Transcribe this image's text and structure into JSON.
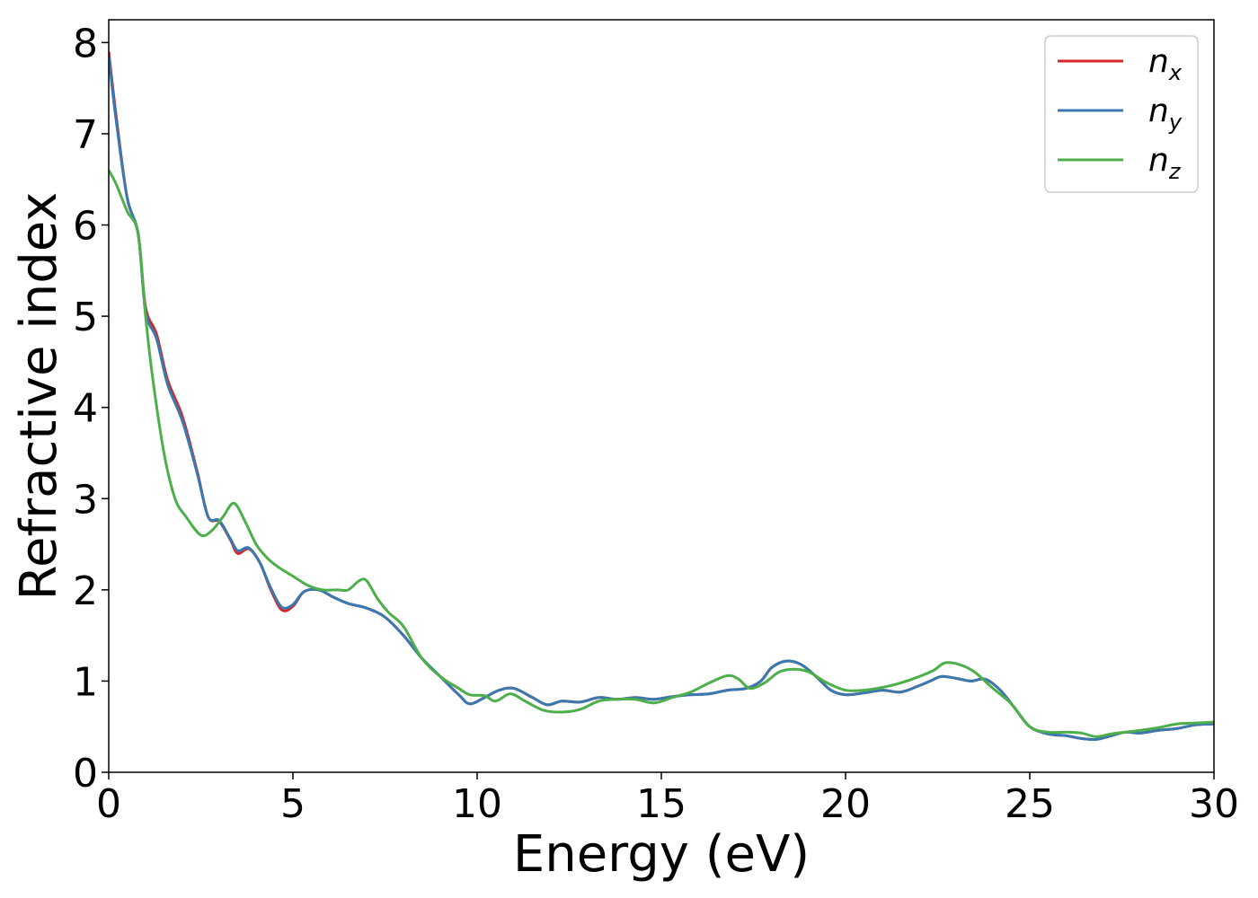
{
  "chart_data": {
    "type": "line",
    "title": "",
    "xlabel": "Energy (eV)",
    "ylabel": "Refractive index",
    "xlim": [
      0,
      30
    ],
    "ylim": [
      0,
      8.25
    ],
    "xticks": [
      0,
      5,
      10,
      15,
      20,
      25,
      30
    ],
    "yticks": [
      0,
      1,
      2,
      3,
      4,
      5,
      6,
      7,
      8
    ],
    "xtick_labels": [
      "0",
      "5",
      "10",
      "15",
      "20",
      "25",
      "30"
    ],
    "ytick_labels": [
      "0",
      "1",
      "2",
      "3",
      "4",
      "5",
      "6",
      "7",
      "8"
    ],
    "grid": false,
    "legend_position": "top-right",
    "series": [
      {
        "name": "n",
        "subscript": "x",
        "color": "#d62728",
        "x": [
          0,
          0.2,
          0.5,
          0.8,
          1.0,
          1.3,
          1.6,
          2.0,
          2.4,
          2.7,
          3.0,
          3.3,
          3.5,
          3.8,
          4.1,
          4.4,
          4.7,
          5.0,
          5.3,
          5.7,
          6.1,
          6.5,
          7.0,
          7.5,
          8.0,
          8.5,
          9.0,
          9.5,
          9.8,
          10.2,
          10.6,
          11.0,
          11.5,
          11.9,
          12.3,
          12.8,
          13.3,
          13.8,
          14.3,
          14.8,
          15.3,
          15.8,
          16.3,
          16.8,
          17.3,
          17.7,
          18.0,
          18.4,
          18.8,
          19.2,
          19.6,
          20.0,
          20.5,
          21.0,
          21.5,
          22.0,
          22.3,
          22.6,
          23.0,
          23.4,
          23.8,
          24.2,
          24.6,
          25.0,
          25.5,
          26.0,
          26.4,
          26.8,
          27.2,
          27.6,
          28.0,
          28.5,
          29.0,
          29.5,
          30.0
        ],
        "y": [
          7.9,
          7.2,
          6.3,
          5.9,
          5.1,
          4.8,
          4.3,
          3.9,
          3.3,
          2.8,
          2.75,
          2.55,
          2.4,
          2.45,
          2.3,
          2.0,
          1.78,
          1.82,
          1.98,
          2.0,
          1.92,
          1.85,
          1.8,
          1.7,
          1.5,
          1.25,
          1.05,
          0.85,
          0.75,
          0.82,
          0.9,
          0.92,
          0.82,
          0.74,
          0.78,
          0.77,
          0.82,
          0.8,
          0.82,
          0.8,
          0.83,
          0.85,
          0.86,
          0.9,
          0.92,
          1.0,
          1.15,
          1.22,
          1.18,
          1.05,
          0.9,
          0.85,
          0.87,
          0.9,
          0.88,
          0.95,
          1.0,
          1.05,
          1.03,
          1.0,
          1.02,
          0.9,
          0.7,
          0.5,
          0.42,
          0.4,
          0.37,
          0.36,
          0.4,
          0.44,
          0.43,
          0.46,
          0.48,
          0.52,
          0.53
        ]
      },
      {
        "name": "n",
        "subscript": "y",
        "color": "#3a79b0",
        "x": [
          0,
          0.2,
          0.5,
          0.8,
          1.0,
          1.3,
          1.6,
          2.0,
          2.4,
          2.7,
          3.0,
          3.3,
          3.5,
          3.8,
          4.1,
          4.4,
          4.7,
          5.0,
          5.3,
          5.7,
          6.1,
          6.5,
          7.0,
          7.5,
          8.0,
          8.5,
          9.0,
          9.5,
          9.8,
          10.2,
          10.6,
          11.0,
          11.5,
          11.9,
          12.3,
          12.8,
          13.3,
          13.8,
          14.3,
          14.8,
          15.3,
          15.8,
          16.3,
          16.8,
          17.3,
          17.7,
          18.0,
          18.4,
          18.8,
          19.2,
          19.6,
          20.0,
          20.5,
          21.0,
          21.5,
          22.0,
          22.3,
          22.6,
          23.0,
          23.4,
          23.8,
          24.2,
          24.6,
          25.0,
          25.5,
          26.0,
          26.4,
          26.8,
          27.2,
          27.6,
          28.0,
          28.5,
          29.0,
          29.5,
          30.0
        ],
        "y": [
          7.85,
          7.15,
          6.3,
          5.9,
          5.05,
          4.75,
          4.25,
          3.85,
          3.28,
          2.8,
          2.76,
          2.56,
          2.43,
          2.46,
          2.3,
          2.02,
          1.81,
          1.84,
          1.98,
          2.0,
          1.92,
          1.85,
          1.8,
          1.7,
          1.5,
          1.25,
          1.05,
          0.85,
          0.75,
          0.82,
          0.9,
          0.92,
          0.82,
          0.74,
          0.78,
          0.77,
          0.82,
          0.8,
          0.82,
          0.8,
          0.83,
          0.85,
          0.86,
          0.9,
          0.92,
          1.0,
          1.15,
          1.22,
          1.18,
          1.05,
          0.9,
          0.85,
          0.87,
          0.9,
          0.88,
          0.95,
          1.0,
          1.05,
          1.03,
          1.0,
          1.02,
          0.9,
          0.7,
          0.5,
          0.42,
          0.4,
          0.37,
          0.36,
          0.4,
          0.44,
          0.43,
          0.46,
          0.48,
          0.52,
          0.53
        ]
      },
      {
        "name": "n",
        "subscript": "z",
        "color": "#4daf4a",
        "x": [
          0,
          0.2,
          0.5,
          0.8,
          1.0,
          1.2,
          1.5,
          1.8,
          2.1,
          2.5,
          2.8,
          3.1,
          3.4,
          3.7,
          4.0,
          4.3,
          4.6,
          5.0,
          5.4,
          5.8,
          6.2,
          6.5,
          6.8,
          7.0,
          7.3,
          7.6,
          8.0,
          8.5,
          9.0,
          9.5,
          9.8,
          10.2,
          10.5,
          10.9,
          11.3,
          11.8,
          12.3,
          12.8,
          13.3,
          13.8,
          14.3,
          14.8,
          15.3,
          15.8,
          16.3,
          16.8,
          17.1,
          17.4,
          17.8,
          18.2,
          18.6,
          19.0,
          19.5,
          20.0,
          20.5,
          21.0,
          21.5,
          22.0,
          22.4,
          22.7,
          23.1,
          23.5,
          24.0,
          24.5,
          25.0,
          25.5,
          26.0,
          26.4,
          26.8,
          27.2,
          27.6,
          28.0,
          28.5,
          29.0,
          29.5,
          30.0
        ],
        "y": [
          6.6,
          6.45,
          6.15,
          5.9,
          5.0,
          4.3,
          3.5,
          3.0,
          2.8,
          2.6,
          2.65,
          2.8,
          2.95,
          2.75,
          2.5,
          2.35,
          2.25,
          2.15,
          2.05,
          2.0,
          2.0,
          2.0,
          2.1,
          2.1,
          1.9,
          1.75,
          1.6,
          1.25,
          1.05,
          0.92,
          0.85,
          0.84,
          0.78,
          0.86,
          0.78,
          0.68,
          0.66,
          0.69,
          0.78,
          0.8,
          0.8,
          0.76,
          0.82,
          0.88,
          0.98,
          1.06,
          1.02,
          0.92,
          0.98,
          1.1,
          1.13,
          1.1,
          0.98,
          0.9,
          0.9,
          0.93,
          0.98,
          1.05,
          1.12,
          1.2,
          1.18,
          1.1,
          0.92,
          0.75,
          0.5,
          0.44,
          0.44,
          0.43,
          0.39,
          0.42,
          0.44,
          0.46,
          0.49,
          0.53,
          0.54,
          0.55
        ]
      }
    ]
  }
}
